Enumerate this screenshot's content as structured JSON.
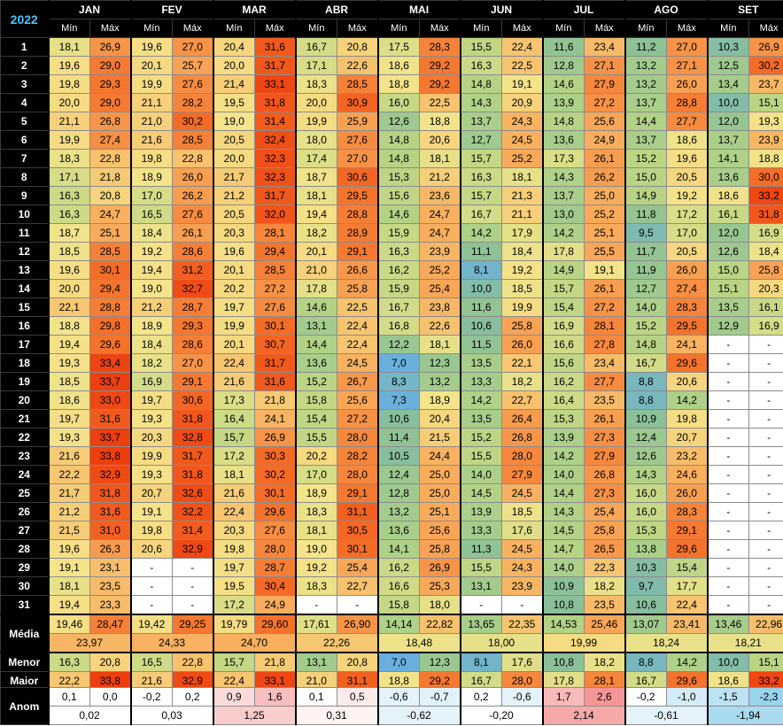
{
  "year": "2022",
  "months": [
    "JAN",
    "FEV",
    "MAR",
    "ABR",
    "MAI",
    "JUN",
    "JUL",
    "AGO",
    "SET"
  ],
  "min_label": "Mín",
  "max_label": "Máx",
  "rows": [
    {
      "day": "1",
      "v": [
        "18,1",
        "26,9",
        "19,6",
        "27,0",
        "20,4",
        "31,6",
        "16,7",
        "20,8",
        "17,5",
        "28,3",
        "15,5",
        "22,4",
        "11,6",
        "23,4",
        "11,2",
        "27,0",
        "10,3",
        "26,9"
      ]
    },
    {
      "day": "2",
      "v": [
        "19,6",
        "29,0",
        "20,1",
        "25,7",
        "20,0",
        "31,7",
        "17,1",
        "22,6",
        "18,6",
        "29,2",
        "16,3",
        "22,5",
        "12,8",
        "27,1",
        "13,2",
        "27,1",
        "12,5",
        "30,2"
      ]
    },
    {
      "day": "3",
      "v": [
        "19,8",
        "29,3",
        "19,9",
        "27,6",
        "21,4",
        "33,1",
        "18,3",
        "28,5",
        "18,8",
        "29,2",
        "14,8",
        "19,1",
        "14,6",
        "27,9",
        "13,2",
        "26,0",
        "13,4",
        "23,7"
      ]
    },
    {
      "day": "4",
      "v": [
        "20,0",
        "29,0",
        "21,1",
        "28,2",
        "19,5",
        "31,8",
        "20,0",
        "30,9",
        "16,0",
        "22,5",
        "14,3",
        "20,9",
        "13,9",
        "27,2",
        "13,7",
        "28,8",
        "10,0",
        "15,1"
      ]
    },
    {
      "day": "5",
      "v": [
        "21,1",
        "26,8",
        "21,0",
        "30,2",
        "19,0",
        "31,4",
        "19,9",
        "25,9",
        "12,6",
        "18,8",
        "13,7",
        "24,3",
        "14,8",
        "25,6",
        "14,4",
        "27,7",
        "12,0",
        "19,3"
      ]
    },
    {
      "day": "6",
      "v": [
        "19,9",
        "27,4",
        "21,6",
        "28,5",
        "20,5",
        "32,4",
        "18,0",
        "27,6",
        "14,8",
        "20,6",
        "12,7",
        "24,5",
        "13,6",
        "24,9",
        "13,7",
        "18,6",
        "13,7",
        "23,9"
      ]
    },
    {
      "day": "7",
      "v": [
        "18,3",
        "22,8",
        "19,8",
        "22,8",
        "20,0",
        "32,3",
        "17,4",
        "27,0",
        "14,8",
        "18,1",
        "15,7",
        "25,2",
        "17,3",
        "26,1",
        "15,2",
        "19,6",
        "14,1",
        "18,8"
      ]
    },
    {
      "day": "8",
      "v": [
        "17,1",
        "21,8",
        "18,9",
        "26,0",
        "21,7",
        "32,3",
        "18,7",
        "30,6",
        "15,3",
        "21,2",
        "16,3",
        "18,1",
        "14,3",
        "26,2",
        "15,0",
        "20,5",
        "13,6",
        "30,0"
      ]
    },
    {
      "day": "9",
      "v": [
        "16,3",
        "20,8",
        "17,0",
        "26,2",
        "21,2",
        "31,7",
        "18,1",
        "29,5",
        "15,6",
        "23,6",
        "15,7",
        "21,3",
        "13,7",
        "25,0",
        "14,9",
        "19,2",
        "18,6",
        "33,2"
      ]
    },
    {
      "day": "10",
      "v": [
        "16,3",
        "24,7",
        "16,5",
        "27,6",
        "20,5",
        "32,0",
        "19,4",
        "28,8",
        "14,6",
        "24,7",
        "16,7",
        "21,1",
        "13,0",
        "25,2",
        "11,8",
        "17,2",
        "16,1",
        "31,8"
      ]
    },
    {
      "day": "11",
      "v": [
        "18,7",
        "25,1",
        "18,4",
        "26,1",
        "20,3",
        "28,1",
        "18,2",
        "28,9",
        "15,9",
        "24,7",
        "14,2",
        "17,9",
        "14,2",
        "25,1",
        "9,5",
        "17,0",
        "12,0",
        "16,9"
      ]
    },
    {
      "day": "12",
      "v": [
        "18,5",
        "28,5",
        "19,2",
        "28,6",
        "19,6",
        "29,4",
        "20,1",
        "29,1",
        "16,3",
        "23,9",
        "11,1",
        "18,4",
        "17,8",
        "25,5",
        "11,7",
        "20,5",
        "12,6",
        "18,4"
      ]
    },
    {
      "day": "13",
      "v": [
        "19,6",
        "30,1",
        "19,4",
        "31,2",
        "20,1",
        "28,5",
        "21,0",
        "26,6",
        "16,2",
        "25,2",
        "8,1",
        "19,2",
        "14,9",
        "19,1",
        "11,9",
        "26,0",
        "15,0",
        "25,8"
      ]
    },
    {
      "day": "14",
      "v": [
        "20,0",
        "29,4",
        "19,0",
        "32,7",
        "20,2",
        "27,2",
        "17,8",
        "25,8",
        "15,9",
        "25,4",
        "10,0",
        "18,5",
        "15,7",
        "26,1",
        "12,7",
        "27,4",
        "15,1",
        "20,3"
      ]
    },
    {
      "day": "15",
      "v": [
        "22,1",
        "28,8",
        "21,2",
        "28,7",
        "19,7",
        "27,6",
        "14,6",
        "22,5",
        "16,7",
        "23,8",
        "11,6",
        "19,9",
        "15,4",
        "27,2",
        "14,0",
        "28,3",
        "13,5",
        "16,1"
      ]
    },
    {
      "day": "16",
      "v": [
        "18,8",
        "29,8",
        "18,9",
        "29,3",
        "19,9",
        "30,1",
        "13,1",
        "22,4",
        "16,8",
        "22,6",
        "10,6",
        "25,8",
        "16,9",
        "28,1",
        "15,2",
        "29,5",
        "12,9",
        "16,9"
      ]
    },
    {
      "day": "17",
      "v": [
        "19,4",
        "29,6",
        "18,4",
        "28,6",
        "20,1",
        "30,7",
        "14,4",
        "22,4",
        "12,2",
        "18,1",
        "11,5",
        "26,0",
        "16,6",
        "27,8",
        "14,8",
        "24,1",
        "-",
        "-"
      ]
    },
    {
      "day": "18",
      "v": [
        "19,3",
        "33,4",
        "18,2",
        "27,0",
        "22,4",
        "31,7",
        "13,6",
        "24,5",
        "7,0",
        "12,3",
        "13,5",
        "22,1",
        "15,6",
        "23,4",
        "16,7",
        "29,6",
        "-",
        "-"
      ]
    },
    {
      "day": "19",
      "v": [
        "18,5",
        "33,7",
        "16,9",
        "29,1",
        "21,6",
        "31,6",
        "15,2",
        "26,7",
        "8,3",
        "13,2",
        "13,3",
        "18,2",
        "16,2",
        "27,7",
        "8,8",
        "20,6",
        "-",
        "-"
      ]
    },
    {
      "day": "20",
      "v": [
        "18,6",
        "33,0",
        "19,7",
        "30,6",
        "17,3",
        "21,8",
        "15,8",
        "25,6",
        "7,3",
        "18,9",
        "14,2",
        "22,7",
        "16,4",
        "23,5",
        "8,8",
        "14,2",
        "-",
        "-"
      ]
    },
    {
      "day": "21",
      "v": [
        "19,7",
        "31,6",
        "19,3",
        "31,8",
        "16,4",
        "24,1",
        "15,4",
        "27,2",
        "10,6",
        "20,4",
        "13,5",
        "26,4",
        "15,3",
        "26,1",
        "10,9",
        "19,8",
        "-",
        "-"
      ]
    },
    {
      "day": "22",
      "v": [
        "19,3",
        "33,7",
        "20,3",
        "32,8",
        "15,7",
        "26,9",
        "15,5",
        "28,0",
        "11,4",
        "21,5",
        "15,2",
        "26,8",
        "13,9",
        "27,3",
        "12,4",
        "20,7",
        "-",
        "-"
      ]
    },
    {
      "day": "23",
      "v": [
        "21,6",
        "33,8",
        "19,9",
        "31,7",
        "17,2",
        "30,3",
        "20,2",
        "28,2",
        "10,5",
        "24,4",
        "15,5",
        "28,0",
        "14,2",
        "27,9",
        "12,6",
        "23,2",
        "-",
        "-"
      ]
    },
    {
      "day": "24",
      "v": [
        "22,2",
        "32,9",
        "19,3",
        "31,8",
        "18,1",
        "30,2",
        "17,0",
        "28,0",
        "12,4",
        "25,0",
        "14,0",
        "27,9",
        "14,0",
        "26,8",
        "14,3",
        "24,6",
        "-",
        "-"
      ]
    },
    {
      "day": "25",
      "v": [
        "21,7",
        "31,8",
        "20,7",
        "32,6",
        "21,6",
        "30,1",
        "18,9",
        "29,1",
        "12,8",
        "25,0",
        "14,5",
        "24,5",
        "14,4",
        "27,3",
        "16,0",
        "26,0",
        "-",
        "-"
      ]
    },
    {
      "day": "26",
      "v": [
        "21,2",
        "31,6",
        "19,1",
        "32,2",
        "22,4",
        "29,6",
        "18,3",
        "31,1",
        "13,2",
        "25,1",
        "13,9",
        "18,5",
        "14,3",
        "25,4",
        "16,0",
        "28,3",
        "-",
        "-"
      ]
    },
    {
      "day": "27",
      "v": [
        "21,5",
        "31,0",
        "19,8",
        "31,4",
        "20,3",
        "27,6",
        "18,1",
        "30,5",
        "13,6",
        "25,6",
        "13,3",
        "17,6",
        "14,5",
        "25,8",
        "15,3",
        "29,1",
        "-",
        "-"
      ]
    },
    {
      "day": "28",
      "v": [
        "19,6",
        "26,3",
        "20,6",
        "32,9",
        "19,8",
        "28,0",
        "19,0",
        "30,1",
        "14,1",
        "25,8",
        "11,3",
        "24,5",
        "14,7",
        "26,5",
        "13,8",
        "29,6",
        "-",
        "-"
      ]
    },
    {
      "day": "29",
      "v": [
        "19,1",
        "23,1",
        "-",
        "-",
        "19,7",
        "28,7",
        "19,2",
        "25,4",
        "16,2",
        "26,9",
        "15,5",
        "24,3",
        "14,0",
        "22,3",
        "10,3",
        "15,4",
        "-",
        "-"
      ]
    },
    {
      "day": "30",
      "v": [
        "18,1",
        "23,5",
        "-",
        "-",
        "19,5",
        "30,4",
        "18,3",
        "22,7",
        "16,6",
        "25,3",
        "13,1",
        "23,9",
        "10,9",
        "18,2",
        "9,7",
        "17,7",
        "-",
        "-"
      ]
    },
    {
      "day": "31",
      "v": [
        "19,4",
        "23,3",
        "-",
        "-",
        "17,2",
        "24,9",
        "-",
        "-",
        "15,8",
        "18,0",
        "-",
        "-",
        "10,8",
        "23,5",
        "10,6",
        "22,4",
        "-",
        "-"
      ]
    }
  ],
  "media": {
    "label": "Média",
    "v": [
      "19,46",
      "28,47",
      "19,42",
      "29,25",
      "19,79",
      "29,60",
      "17,61",
      "26,90",
      "14,14",
      "22,82",
      "13,65",
      "22,35",
      "14,53",
      "25,46",
      "13,07",
      "23,41",
      "13,46",
      "22,96"
    ],
    "avg": [
      "23,97",
      "24,33",
      "24,70",
      "22,26",
      "18,48",
      "18,00",
      "19,99",
      "18,24",
      "18,21"
    ]
  },
  "menor": {
    "label": "Menor",
    "v": [
      "16,3",
      "20,8",
      "16,5",
      "22,8",
      "15,7",
      "21,8",
      "13,1",
      "20,8",
      "7,0",
      "12,3",
      "8,1",
      "17,6",
      "10,8",
      "18,2",
      "8,8",
      "14,2",
      "10,0",
      "15,1"
    ]
  },
  "maior": {
    "label": "Maior",
    "v": [
      "22,2",
      "33,8",
      "21,6",
      "32,9",
      "22,4",
      "33,1",
      "21,0",
      "31,1",
      "18,8",
      "29,2",
      "16,7",
      "28,0",
      "17,8",
      "28,1",
      "16,7",
      "29,6",
      "18,6",
      "33,2"
    ]
  },
  "anom": {
    "label": "Anom",
    "v": [
      "0,1",
      "0,0",
      "-0,2",
      "0,2",
      "0,9",
      "1,6",
      "0,1",
      "0,5",
      "-0,6",
      "-0,7",
      "0,2",
      "-0,6",
      "1,7",
      "2,6",
      "-0,2",
      "-1,0",
      "-1,5",
      "-2,3"
    ],
    "avg": [
      "0,02",
      "0,03",
      "1,25",
      "0,31",
      "-0,62",
      "-0,20",
      "2,14",
      "-0,61",
      "-1,94"
    ]
  }
}
